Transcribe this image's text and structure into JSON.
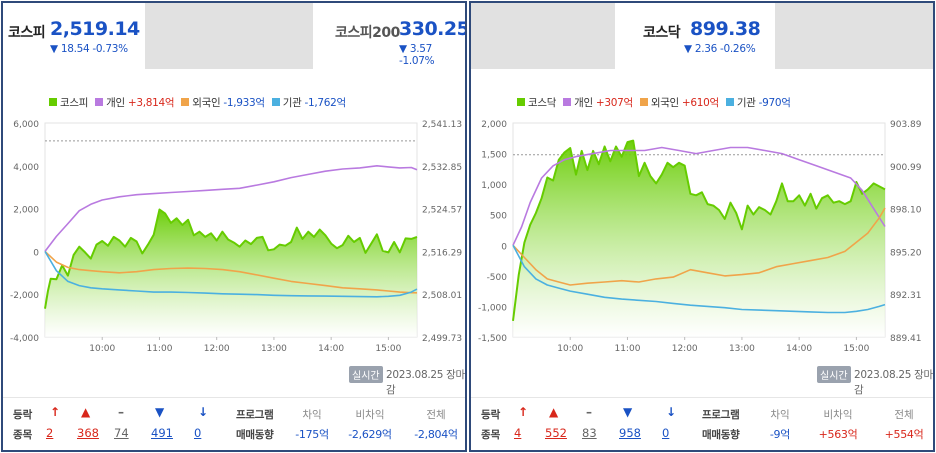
{
  "colors": {
    "green": "#66cc00",
    "purple": "#b97ae0",
    "orange": "#f0a44a",
    "cyan": "#4bb0e0",
    "rise": "#d8271b",
    "fall": "#1a52c4"
  },
  "kospi": {
    "tab_name": "코스피",
    "value": "2,519.14",
    "change": "▼ 18.54 -0.73%",
    "legend": [
      {
        "name": "코스피",
        "value": "",
        "color": "#66cc00",
        "sign": ""
      },
      {
        "name": "개인",
        "value": "+3,814억",
        "color": "#b97ae0",
        "sign": "pos"
      },
      {
        "name": "외국인",
        "value": "-1,933억",
        "color": "#f0a44a",
        "sign": "neg"
      },
      {
        "name": "기관",
        "value": "-1,762억",
        "color": "#4bb0e0",
        "sign": "neg"
      }
    ],
    "realtime_label": "실시간",
    "date": "2023.08.25 장마감",
    "stats": {
      "row_label_1": "등락",
      "row_label_2": "종목",
      "items": [
        {
          "arrow": "↑",
          "count": "2",
          "color": "red"
        },
        {
          "arrow": "▲",
          "count": "368",
          "color": "red"
        },
        {
          "arrow": "–",
          "count": "74",
          "color": "gray"
        },
        {
          "arrow": "▼",
          "count": "491",
          "color": "blue"
        },
        {
          "arrow": "↓",
          "count": "0",
          "color": "blue"
        }
      ]
    },
    "program": {
      "label_1": "프로그램",
      "label_2": "매매동향",
      "headers": [
        "차익",
        "비차익",
        "전체"
      ],
      "values": [
        "-175억",
        "-2,629억",
        "-2,804억"
      ],
      "signs": [
        "neg",
        "neg",
        "neg"
      ]
    }
  },
  "kospi200": {
    "tab_name": "코스피200",
    "value": "330.25",
    "change": "▼ 3.57 -1.07%"
  },
  "kosdaq": {
    "tab_name": "코스닥",
    "value": "899.38",
    "change": "▼ 2.36 -0.26%",
    "legend": [
      {
        "name": "코스닥",
        "value": "",
        "color": "#66cc00",
        "sign": ""
      },
      {
        "name": "개인",
        "value": "+307억",
        "color": "#b97ae0",
        "sign": "pos"
      },
      {
        "name": "외국인",
        "value": "+610억",
        "color": "#f0a44a",
        "sign": "pos"
      },
      {
        "name": "기관",
        "value": "-970억",
        "color": "#4bb0e0",
        "sign": "neg"
      }
    ],
    "realtime_label": "실시간",
    "date": "2023.08.25 장마감",
    "stats": {
      "row_label_1": "등락",
      "row_label_2": "종목",
      "items": [
        {
          "arrow": "↑",
          "count": "4",
          "color": "red"
        },
        {
          "arrow": "▲",
          "count": "552",
          "color": "red"
        },
        {
          "arrow": "–",
          "count": "83",
          "color": "gray"
        },
        {
          "arrow": "▼",
          "count": "958",
          "color": "blue"
        },
        {
          "arrow": "↓",
          "count": "0",
          "color": "blue"
        }
      ]
    },
    "program": {
      "label_1": "프로그램",
      "label_2": "매매동향",
      "headers": [
        "차익",
        "비차익",
        "전체"
      ],
      "values": [
        "-9억",
        "+563억",
        "+554억"
      ],
      "signs": [
        "neg",
        "pos",
        "pos"
      ]
    }
  },
  "chart_data": [
    {
      "type": "line",
      "index": "kospi",
      "x_ticks": [
        "10:00",
        "11:00",
        "12:00",
        "13:00",
        "14:00",
        "15:00"
      ],
      "x_range": [
        9.0,
        15.5
      ],
      "y_left_ticks": [
        "6,000",
        "4,000",
        "2,000",
        "0",
        "-2,000",
        "-4,000"
      ],
      "y_left_range": [
        -4000,
        6000
      ],
      "y_right_ticks": [
        "2,541.13",
        "2,532.85",
        "2,524.57",
        "2,516.29",
        "2,508.01",
        "2,499.73"
      ],
      "y_right_range": [
        2499.73,
        2541.13
      ],
      "prev_close": 2537.68,
      "series": [
        {
          "name": "코스피",
          "axis": "right",
          "x": [
            9.0,
            9.05,
            9.1,
            9.2,
            9.3,
            9.4,
            9.5,
            9.6,
            9.7,
            9.8,
            9.9,
            10.0,
            10.1,
            10.2,
            10.3,
            10.4,
            10.5,
            10.6,
            10.7,
            10.8,
            10.9,
            11.0,
            11.1,
            11.2,
            11.3,
            11.4,
            11.5,
            11.6,
            11.7,
            11.8,
            11.9,
            12.0,
            12.1,
            12.2,
            12.3,
            12.4,
            12.5,
            12.6,
            12.7,
            12.8,
            12.9,
            13.0,
            13.1,
            13.2,
            13.3,
            13.4,
            13.5,
            13.6,
            13.7,
            13.8,
            13.9,
            14.0,
            14.1,
            14.2,
            14.3,
            14.4,
            14.5,
            14.6,
            14.7,
            14.8,
            14.9,
            15.0,
            15.1,
            15.2,
            15.3,
            15.4,
            15.5
          ],
          "y": [
            2505.2,
            2508.6,
            2511.0,
            2510.9,
            2513.6,
            2511.6,
            2515.6,
            2517.2,
            2516.1,
            2514.9,
            2517.6,
            2518.3,
            2517.4,
            2519.1,
            2518.4,
            2517.2,
            2518.9,
            2518.2,
            2515.9,
            2517.6,
            2519.5,
            2524.4,
            2523.6,
            2521.8,
            2522.7,
            2521.4,
            2522.4,
            2519.4,
            2520.1,
            2519.1,
            2519.8,
            2518.4,
            2520.1,
            2518.6,
            2518.0,
            2517.2,
            2518.4,
            2517.7,
            2518.9,
            2519.1,
            2516.5,
            2516.7,
            2517.6,
            2517.4,
            2518.1,
            2520.9,
            2518.7,
            2520.1,
            2519.1,
            2520.5,
            2519.4,
            2517.8,
            2516.9,
            2517.5,
            2519.3,
            2518.1,
            2518.9,
            2516.0,
            2517.8,
            2519.6,
            2516.4,
            2516.1,
            2518.1,
            2516.1,
            2518.8,
            2518.7,
            2519.1
          ]
        },
        {
          "name": "개인",
          "axis": "left",
          "x": [
            9.0,
            9.2,
            9.4,
            9.6,
            9.8,
            10.0,
            10.3,
            10.6,
            10.9,
            11.2,
            11.5,
            11.8,
            12.1,
            12.4,
            12.7,
            13.0,
            13.3,
            13.6,
            13.9,
            14.2,
            14.5,
            14.8,
            15.0,
            15.2,
            15.4,
            15.5
          ],
          "y": [
            0,
            700,
            1300,
            1900,
            2200,
            2400,
            2550,
            2650,
            2700,
            2750,
            2800,
            2850,
            2900,
            2950,
            3100,
            3250,
            3450,
            3600,
            3750,
            3850,
            3900,
            4000,
            3950,
            3900,
            3920,
            3814
          ]
        },
        {
          "name": "외국인",
          "axis": "left",
          "x": [
            9.0,
            9.2,
            9.4,
            9.6,
            9.8,
            10.0,
            10.3,
            10.6,
            10.9,
            11.2,
            11.5,
            11.8,
            12.1,
            12.4,
            12.7,
            13.0,
            13.3,
            13.6,
            13.9,
            14.2,
            14.5,
            14.8,
            15.0,
            15.2,
            15.4,
            15.5
          ],
          "y": [
            0,
            -500,
            -750,
            -850,
            -900,
            -950,
            -1000,
            -950,
            -850,
            -800,
            -780,
            -800,
            -850,
            -950,
            -1100,
            -1250,
            -1400,
            -1500,
            -1600,
            -1700,
            -1750,
            -1800,
            -1850,
            -1900,
            -1930,
            -1933
          ]
        },
        {
          "name": "기관",
          "axis": "left",
          "x": [
            9.0,
            9.2,
            9.4,
            9.6,
            9.8,
            10.0,
            10.3,
            10.6,
            10.9,
            11.2,
            11.5,
            11.8,
            12.1,
            12.4,
            12.7,
            13.0,
            13.3,
            13.6,
            13.9,
            14.2,
            14.5,
            14.8,
            15.0,
            15.2,
            15.4,
            15.5
          ],
          "y": [
            0,
            -900,
            -1400,
            -1600,
            -1700,
            -1750,
            -1800,
            -1850,
            -1900,
            -1900,
            -1920,
            -1950,
            -1980,
            -2000,
            -2020,
            -2050,
            -2070,
            -2080,
            -2090,
            -2100,
            -2110,
            -2120,
            -2100,
            -2050,
            -1900,
            -1762
          ]
        }
      ]
    },
    {
      "type": "line",
      "index": "kosdaq",
      "x_ticks": [
        "10:00",
        "11:00",
        "12:00",
        "13:00",
        "14:00",
        "15:00"
      ],
      "x_range": [
        9.0,
        15.5
      ],
      "y_left_ticks": [
        "2,000",
        "1,500",
        "1,000",
        "500",
        "0",
        "-500",
        "-1,000",
        "-1,500"
      ],
      "y_left_range": [
        -1500,
        2000
      ],
      "y_right_ticks": [
        "903.89",
        "900.99",
        "898.10",
        "895.20",
        "892.31",
        "889.41"
      ],
      "y_right_range": [
        889.41,
        903.89
      ],
      "prev_close": 901.74,
      "series": [
        {
          "name": "코스닥",
          "axis": "right",
          "x": [
            9.0,
            9.1,
            9.2,
            9.3,
            9.4,
            9.5,
            9.6,
            9.7,
            9.8,
            9.9,
            10.0,
            10.1,
            10.2,
            10.3,
            10.4,
            10.5,
            10.6,
            10.7,
            10.8,
            10.9,
            11.0,
            11.1,
            11.2,
            11.3,
            11.4,
            11.5,
            11.6,
            11.7,
            11.8,
            11.9,
            12.0,
            12.1,
            12.2,
            12.3,
            12.4,
            12.5,
            12.6,
            12.7,
            12.8,
            12.9,
            13.0,
            13.1,
            13.2,
            13.3,
            13.4,
            13.5,
            13.6,
            13.7,
            13.8,
            13.9,
            14.0,
            14.1,
            14.2,
            14.3,
            14.4,
            14.5,
            14.6,
            14.7,
            14.8,
            14.9,
            15.0,
            15.1,
            15.2,
            15.3,
            15.4,
            15.5
          ],
          "y": [
            890.5,
            893.6,
            895.8,
            897.0,
            897.8,
            898.8,
            900.2,
            900.0,
            901.4,
            901.9,
            902.2,
            900.4,
            902.0,
            900.7,
            902.0,
            901.1,
            902.3,
            901.3,
            902.3,
            901.6,
            902.6,
            902.7,
            900.3,
            901.2,
            900.3,
            899.8,
            900.4,
            901.2,
            900.9,
            901.2,
            901.0,
            899.1,
            899.0,
            899.2,
            898.4,
            898.3,
            898.0,
            897.4,
            898.5,
            897.8,
            896.7,
            898.3,
            897.7,
            898.2,
            898.0,
            897.7,
            898.6,
            899.8,
            898.6,
            898.6,
            899.0,
            898.3,
            899.1,
            898.1,
            898.8,
            899.0,
            898.5,
            898.6,
            898.4,
            898.6,
            899.9,
            899.1,
            899.4,
            899.8,
            899.6,
            899.4
          ]
        },
        {
          "name": "개인",
          "axis": "left",
          "x": [
            9.0,
            9.15,
            9.3,
            9.5,
            9.7,
            9.9,
            10.1,
            10.4,
            10.7,
            11.0,
            11.3,
            11.6,
            11.9,
            12.2,
            12.5,
            12.8,
            13.1,
            13.4,
            13.7,
            14.0,
            14.3,
            14.6,
            14.9,
            15.1,
            15.3,
            15.5
          ],
          "y": [
            0,
            300,
            700,
            1100,
            1300,
            1400,
            1450,
            1500,
            1550,
            1550,
            1550,
            1600,
            1550,
            1500,
            1550,
            1600,
            1600,
            1550,
            1500,
            1400,
            1300,
            1200,
            1100,
            900,
            600,
            307
          ]
        },
        {
          "name": "외국인",
          "axis": "left",
          "x": [
            9.0,
            9.2,
            9.4,
            9.6,
            9.8,
            10.0,
            10.3,
            10.6,
            10.9,
            11.2,
            11.5,
            11.8,
            12.1,
            12.4,
            12.7,
            13.0,
            13.3,
            13.6,
            13.9,
            14.2,
            14.5,
            14.8,
            15.0,
            15.2,
            15.4,
            15.5
          ],
          "y": [
            0,
            -200,
            -400,
            -550,
            -600,
            -650,
            -620,
            -600,
            -580,
            -600,
            -550,
            -520,
            -400,
            -450,
            -500,
            -480,
            -450,
            -350,
            -300,
            -250,
            -200,
            -100,
            50,
            200,
            450,
            610
          ]
        },
        {
          "name": "기관",
          "axis": "left",
          "x": [
            9.0,
            9.2,
            9.4,
            9.6,
            9.8,
            10.0,
            10.3,
            10.6,
            10.9,
            11.2,
            11.5,
            11.8,
            12.1,
            12.4,
            12.7,
            13.0,
            13.3,
            13.6,
            13.9,
            14.2,
            14.5,
            14.8,
            15.0,
            15.2,
            15.4,
            15.5
          ],
          "y": [
            0,
            -350,
            -550,
            -650,
            -700,
            -750,
            -800,
            -850,
            -880,
            -900,
            -920,
            -950,
            -980,
            -1000,
            -1020,
            -1050,
            -1060,
            -1070,
            -1080,
            -1090,
            -1100,
            -1100,
            -1080,
            -1050,
            -1000,
            -970
          ]
        }
      ]
    }
  ]
}
